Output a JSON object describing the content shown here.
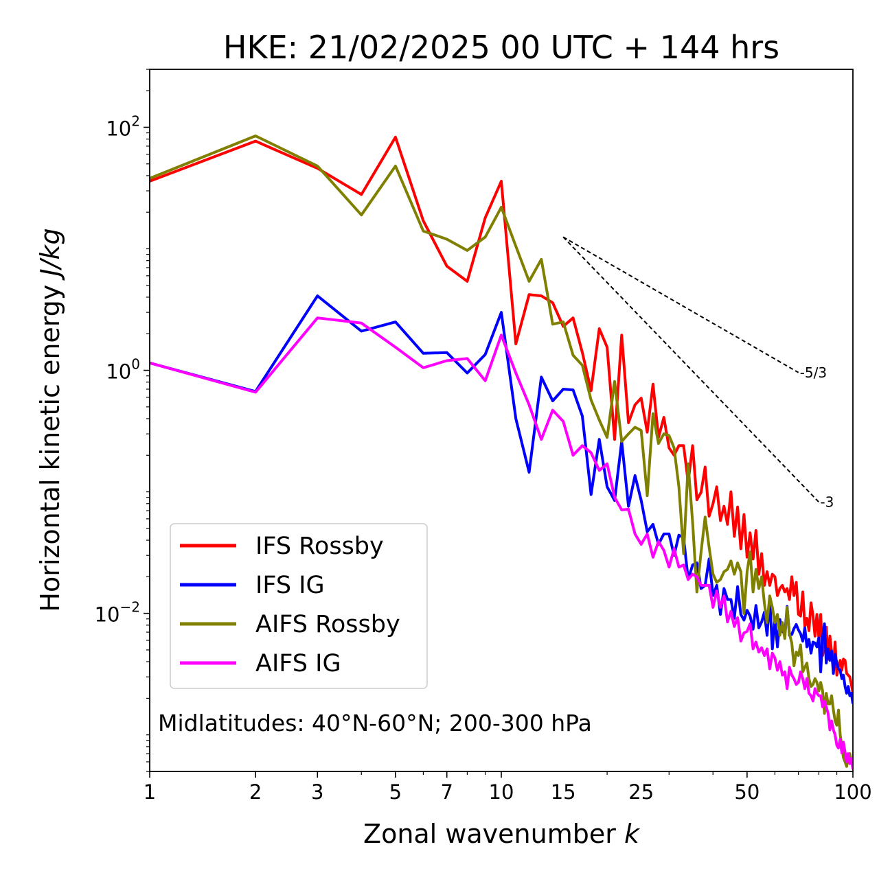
{
  "chart_data": {
    "type": "line",
    "title": "HKE: 21/02/2025 00 UTC + 144 hrs",
    "xlabel": "Zonal wavenumber k",
    "xlabel_main": "Zonal wavenumber ",
    "xlabel_var": "k",
    "ylabel": "Horizontal kinetic energy J/kg",
    "ylabel_main": "Horizontal kinetic energy ",
    "ylabel_units": "J/kg",
    "xscale": "log",
    "yscale": "log",
    "xlim": [
      1,
      100
    ],
    "ylim": [
      0.0005,
      300
    ],
    "x_ticks": [
      1,
      2,
      3,
      5,
      7,
      10,
      15,
      25,
      50,
      100
    ],
    "x_tick_labels": [
      "1",
      "2",
      "3",
      "5",
      "7",
      "10",
      "15",
      "25",
      "50",
      "100"
    ],
    "y_ticks": [
      {
        "value": 100,
        "base": "10",
        "exp": "2"
      },
      {
        "value": 1,
        "base": "10",
        "exp": "0"
      },
      {
        "value": 0.01,
        "base": "10",
        "exp": "−2"
      }
    ],
    "grid": false,
    "legend": "lower-left",
    "annotation": "Midlatitudes: 40°N-60°N; 200-300 hPa",
    "reference_slopes": [
      {
        "label": "-5/3",
        "slope": -1.6667,
        "x_start": 15,
        "x_end": 70,
        "y_start": 12.5
      },
      {
        "label": "-3",
        "slope": -3,
        "x_start": 15,
        "x_end": 80,
        "y_start": 12.5
      }
    ],
    "series": [
      {
        "name": "IFS Rossby",
        "color": "#ff0000",
        "x": [
          1,
          2,
          3,
          4,
          5,
          6,
          7,
          8,
          9,
          10,
          11,
          12,
          13,
          14,
          15,
          16,
          17,
          18,
          19,
          20,
          21,
          22,
          23,
          24,
          25,
          26,
          27,
          28,
          29,
          30,
          31,
          32,
          33,
          34,
          35,
          36,
          37,
          38,
          39,
          40,
          41,
          42,
          43,
          44,
          45,
          46,
          47,
          48,
          49,
          50,
          51,
          52,
          53,
          54,
          55,
          56,
          57,
          58,
          59,
          60,
          61,
          62,
          63,
          64,
          65,
          66,
          67,
          68,
          69,
          70,
          71,
          72,
          73,
          74,
          75,
          76,
          77,
          78,
          79,
          80,
          81,
          82,
          83,
          84,
          85,
          86,
          87,
          88,
          89,
          90,
          91,
          92,
          93,
          94,
          95,
          96,
          97,
          98,
          99,
          100
        ],
        "y": [
          36,
          77,
          46,
          28,
          83,
          17,
          7.2,
          5.4,
          18,
          36,
          1.65,
          4.2,
          4.1,
          3.6,
          2.3,
          2.7,
          1.4,
          0.68,
          2.2,
          1.55,
          0.27,
          1.95,
          0.37,
          0.52,
          0.59,
          0.31,
          0.77,
          0.28,
          0.41,
          0.23,
          0.2,
          0.24,
          0.24,
          0.12,
          0.24,
          0.086,
          0.099,
          0.16,
          0.063,
          0.08,
          0.11,
          0.058,
          0.076,
          0.054,
          0.1,
          0.043,
          0.075,
          0.034,
          0.065,
          0.029,
          0.046,
          0.028,
          0.048,
          0.021,
          0.031,
          0.017,
          0.022,
          0.017,
          0.021,
          0.02,
          0.014,
          0.016,
          0.017,
          0.015,
          0.016,
          0.013,
          0.02,
          0.014,
          0.018,
          0.0098,
          0.0095,
          0.015,
          0.0078,
          0.0091,
          0.0072,
          0.0122,
          0.0096,
          0.0065,
          0.0098,
          0.0063,
          0.0098,
          0.0045,
          0.0056,
          0.0077,
          0.0042,
          0.0065,
          0.0048,
          0.0038,
          0.0058,
          0.0031,
          0.0037,
          0.0041,
          0.0034,
          0.0042,
          0.0041,
          0.0032,
          0.0031,
          0.003,
          0.0026,
          0.0022
        ]
      },
      {
        "name": "IFS IG",
        "color": "#0000ff",
        "x": [
          1,
          2,
          3,
          4,
          5,
          6,
          7,
          8,
          9,
          10,
          11,
          12,
          13,
          14,
          15,
          16,
          17,
          18,
          19,
          20,
          21,
          22,
          23,
          24,
          25,
          26,
          27,
          28,
          29,
          30,
          31,
          32,
          33,
          34,
          35,
          36,
          37,
          38,
          39,
          40,
          41,
          42,
          43,
          44,
          45,
          46,
          47,
          48,
          49,
          50,
          51,
          52,
          53,
          54,
          55,
          56,
          57,
          58,
          59,
          60,
          61,
          62,
          63,
          64,
          65,
          66,
          67,
          68,
          69,
          70,
          71,
          72,
          73,
          74,
          75,
          76,
          77,
          78,
          79,
          80,
          81,
          82,
          83,
          84,
          85,
          86,
          87,
          88,
          89,
          90,
          91,
          92,
          93,
          94,
          95,
          96,
          97,
          98,
          99,
          100
        ],
        "y": [
          1.15,
          0.67,
          4.1,
          2.1,
          2.5,
          1.38,
          1.4,
          0.95,
          1.35,
          3.0,
          0.4,
          0.145,
          0.88,
          0.56,
          0.7,
          0.69,
          0.42,
          0.095,
          0.27,
          0.11,
          0.085,
          0.26,
          0.076,
          0.136,
          0.085,
          0.047,
          0.054,
          0.037,
          0.045,
          0.045,
          0.03,
          0.044,
          0.042,
          0.019,
          0.025,
          0.026,
          0.016,
          0.017,
          0.028,
          0.014,
          0.017,
          0.0098,
          0.016,
          0.013,
          0.013,
          0.0091,
          0.0166,
          0.0098,
          0.0088,
          0.0106,
          0.0095,
          0.0074,
          0.0116,
          0.0076,
          0.0085,
          0.0102,
          0.0066,
          0.0132,
          0.0051,
          0.0092,
          0.0053,
          0.0089,
          0.0072,
          0.0067,
          0.0114,
          0.0066,
          0.0067,
          0.0075,
          0.0081,
          0.0073,
          0.0068,
          0.0059,
          0.0076,
          0.0053,
          0.0061,
          0.0047,
          0.0058,
          0.0057,
          0.0053,
          0.0063,
          0.0033,
          0.0064,
          0.0082,
          0.0039,
          0.0051,
          0.0041,
          0.0049,
          0.0032,
          0.0046,
          0.0039,
          0.0035,
          0.0034,
          0.0029,
          0.0031,
          0.0025,
          0.0022,
          0.0025,
          0.0021,
          0.0022,
          0.0018
        ]
      },
      {
        "name": "AIFS Rossby",
        "color": "#808000",
        "x": [
          1,
          2,
          3,
          4,
          5,
          6,
          7,
          8,
          9,
          10,
          11,
          12,
          13,
          14,
          15,
          16,
          17,
          18,
          19,
          20,
          21,
          22,
          23,
          24,
          25,
          26,
          27,
          28,
          29,
          30,
          31,
          32,
          33,
          34,
          35,
          36,
          37,
          38,
          39,
          40,
          41,
          42,
          43,
          44,
          45,
          46,
          47,
          48,
          49,
          50,
          51,
          52,
          53,
          54,
          55,
          56,
          57,
          58,
          59,
          60,
          61,
          62,
          63,
          64,
          65,
          66,
          67,
          68,
          69,
          70,
          71,
          72,
          73,
          74,
          75,
          76,
          77,
          78,
          79,
          80,
          81,
          82,
          83,
          84,
          85,
          86,
          87,
          88,
          89,
          90,
          91,
          92,
          93,
          94,
          95,
          96,
          97,
          98,
          99,
          100
        ],
        "y": [
          38,
          85,
          48,
          19,
          48,
          14,
          12,
          9.7,
          12.5,
          22,
          10.5,
          5.4,
          8.2,
          2.4,
          2.5,
          1.33,
          1.1,
          0.57,
          0.39,
          0.28,
          0.81,
          0.26,
          0.3,
          0.34,
          0.32,
          0.093,
          0.44,
          0.25,
          0.3,
          0.29,
          0.23,
          0.11,
          0.031,
          0.17,
          0.056,
          0.015,
          0.032,
          0.062,
          0.035,
          0.021,
          0.018,
          0.019,
          0.022,
          0.023,
          0.027,
          0.021,
          0.026,
          0.022,
          0.01,
          0.022,
          0.032,
          0.015,
          0.023,
          0.016,
          0.02,
          0.0121,
          0.0084,
          0.0139,
          0.0112,
          0.0084,
          0.0098,
          0.0066,
          0.0084,
          0.0062,
          0.0112,
          0.0068,
          0.0057,
          0.0037,
          0.0048,
          0.0045,
          0.0055,
          0.0033,
          0.0036,
          0.0039,
          0.0029,
          0.0025,
          0.0026,
          0.0029,
          0.0027,
          0.0023,
          0.0027,
          0.0023,
          0.0015,
          0.0022,
          0.0018,
          0.0018,
          0.0021,
          0.0016,
          0.0013,
          0.0012,
          0.0016,
          0.001,
          0.0008,
          0.00065,
          0.0006,
          0.00055,
          0.00068,
          0.0007,
          0.0006,
          0.0006
        ]
      },
      {
        "name": "AIFS IG",
        "color": "#ff00ff",
        "x": [
          1,
          2,
          3,
          4,
          5,
          6,
          7,
          8,
          9,
          10,
          11,
          12,
          13,
          14,
          15,
          16,
          17,
          18,
          19,
          20,
          21,
          22,
          23,
          24,
          25,
          26,
          27,
          28,
          29,
          30,
          31,
          32,
          33,
          34,
          35,
          36,
          37,
          38,
          39,
          40,
          41,
          42,
          43,
          44,
          45,
          46,
          47,
          48,
          49,
          50,
          51,
          52,
          53,
          54,
          55,
          56,
          57,
          58,
          59,
          60,
          61,
          62,
          63,
          64,
          65,
          66,
          67,
          68,
          69,
          70,
          71,
          72,
          73,
          74,
          75,
          76,
          77,
          78,
          79,
          80,
          81,
          82,
          83,
          84,
          85,
          86,
          87,
          88,
          89,
          90,
          91,
          92,
          93,
          94,
          95,
          96,
          97,
          98,
          99,
          100
        ],
        "y": [
          1.15,
          0.66,
          2.7,
          2.45,
          1.55,
          1.05,
          1.2,
          1.25,
          0.82,
          1.95,
          0.95,
          0.52,
          0.27,
          0.47,
          0.38,
          0.2,
          0.24,
          0.21,
          0.15,
          0.17,
          0.09,
          0.071,
          0.072,
          0.045,
          0.037,
          0.045,
          0.029,
          0.039,
          0.033,
          0.024,
          0.034,
          0.024,
          0.025,
          0.019,
          0.021,
          0.02,
          0.017,
          0.017,
          0.017,
          0.0112,
          0.0153,
          0.0112,
          0.0139,
          0.0085,
          0.0104,
          0.0078,
          0.0092,
          0.0059,
          0.0069,
          0.0071,
          0.0082,
          0.0051,
          0.0058,
          0.0048,
          0.0052,
          0.0045,
          0.0051,
          0.0035,
          0.0047,
          0.0043,
          0.0034,
          0.004,
          0.0031,
          0.0033,
          0.0024,
          0.0036,
          0.0031,
          0.0029,
          0.0026,
          0.0027,
          0.0033,
          0.0029,
          0.0024,
          0.0029,
          0.0022,
          0.0021,
          0.0019,
          0.0024,
          0.0022,
          0.0021,
          0.0021,
          0.0017,
          0.0019,
          0.0017,
          0.0015,
          0.0011,
          0.0013,
          0.0011,
          0.001,
          0.00082,
          0.00078,
          0.00092,
          0.00071,
          0.00087,
          0.00072,
          0.0006,
          0.0007,
          0.00058,
          0.00064,
          0.00052
        ]
      }
    ]
  }
}
